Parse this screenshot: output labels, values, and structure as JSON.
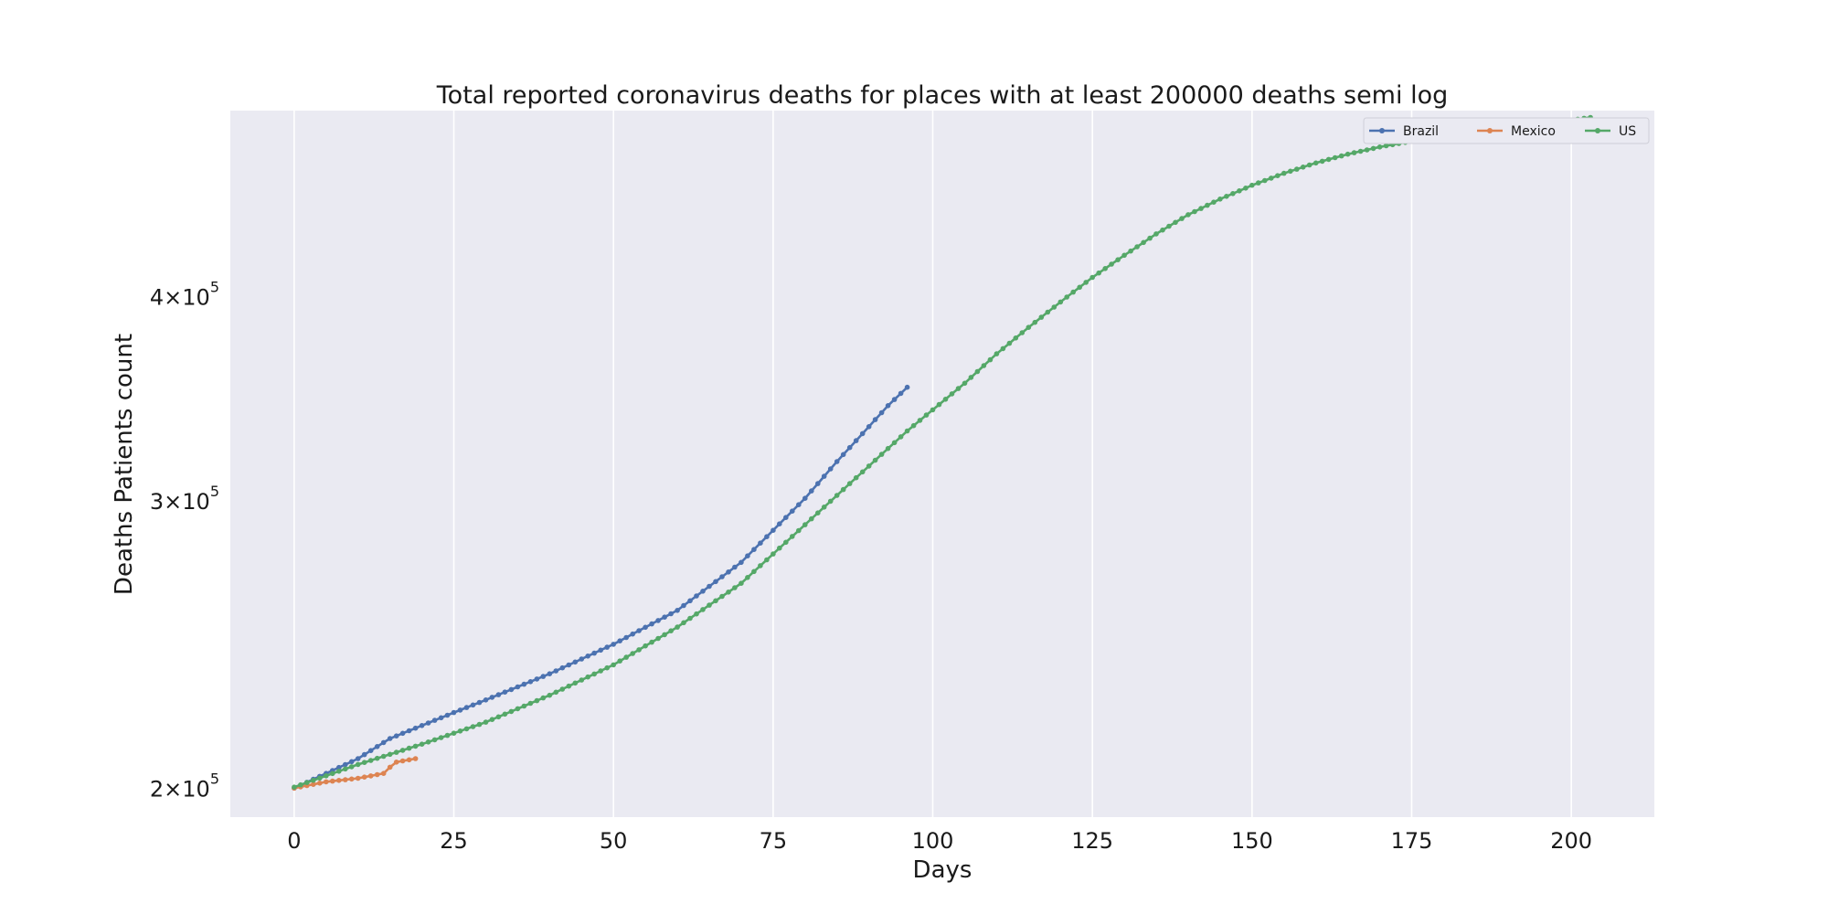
{
  "chart_data": {
    "type": "line",
    "title": "Total reported coronavirus deaths for places with at least 200000 deaths semi log",
    "xlabel": "Days",
    "ylabel": "Deaths Patients count",
    "yscale": "log",
    "xlim": [
      -10,
      213
    ],
    "ylim": [
      192000,
      520000
    ],
    "xticks": [
      {
        "value": 0,
        "label": "0"
      },
      {
        "value": 25,
        "label": "25"
      },
      {
        "value": 50,
        "label": "50"
      },
      {
        "value": 75,
        "label": "75"
      },
      {
        "value": 100,
        "label": "100"
      },
      {
        "value": 125,
        "label": "125"
      },
      {
        "value": 150,
        "label": "150"
      },
      {
        "value": 175,
        "label": "175"
      },
      {
        "value": 200,
        "label": "200"
      }
    ],
    "yticks": [
      {
        "value": 200000,
        "mantissa": "2",
        "base": "10",
        "exponent": "5"
      },
      {
        "value": 300000,
        "mantissa": "3",
        "base": "10",
        "exponent": "5"
      },
      {
        "value": 400000,
        "mantissa": "4",
        "base": "10",
        "exponent": "5"
      }
    ],
    "grid": true,
    "legend_position": "top-right",
    "series": [
      {
        "name": "Brazil",
        "color": "#4c72b0",
        "x_start": 0,
        "anchors": [
          [
            0,
            200000
          ],
          [
            10,
            208500
          ],
          [
            15,
            214500
          ],
          [
            25,
            222500
          ],
          [
            30,
            226500
          ],
          [
            40,
            235000
          ],
          [
            50,
            245000
          ],
          [
            60,
            257000
          ],
          [
            70,
            275000
          ],
          [
            80,
            301000
          ],
          [
            85,
            317000
          ],
          [
            90,
            333000
          ],
          [
            93,
            343000
          ],
          [
            96,
            352000
          ]
        ]
      },
      {
        "name": "Mexico",
        "color": "#dd8452",
        "x_start": 0,
        "anchors": [
          [
            0,
            200000
          ],
          [
            5,
            201800
          ],
          [
            10,
            202800
          ],
          [
            14,
            204200
          ],
          [
            15,
            206000
          ],
          [
            16,
            207500
          ],
          [
            19,
            208500
          ]
        ]
      },
      {
        "name": "US",
        "color": "#55a868",
        "x_start": 0,
        "anchors": [
          [
            0,
            200300
          ],
          [
            10,
            206800
          ],
          [
            20,
            212800
          ],
          [
            30,
            219500
          ],
          [
            40,
            228000
          ],
          [
            50,
            238000
          ],
          [
            60,
            251000
          ],
          [
            70,
            267000
          ],
          [
            80,
            290000
          ],
          [
            90,
            315000
          ],
          [
            96,
            331000
          ],
          [
            100,
            341000
          ],
          [
            105,
            354000
          ],
          [
            110,
            369000
          ],
          [
            115,
            383000
          ],
          [
            120,
            397000
          ],
          [
            125,
            411000
          ],
          [
            130,
            424000
          ],
          [
            135,
            437000
          ],
          [
            140,
            449000
          ],
          [
            145,
            459000
          ],
          [
            150,
            468000
          ],
          [
            155,
            476000
          ],
          [
            160,
            483000
          ],
          [
            165,
            489000
          ],
          [
            170,
            494000
          ],
          [
            175,
            498000
          ],
          [
            180,
            502000
          ],
          [
            185,
            505000
          ],
          [
            190,
            508000
          ],
          [
            195,
            510000
          ],
          [
            203,
            515000
          ]
        ]
      }
    ]
  }
}
